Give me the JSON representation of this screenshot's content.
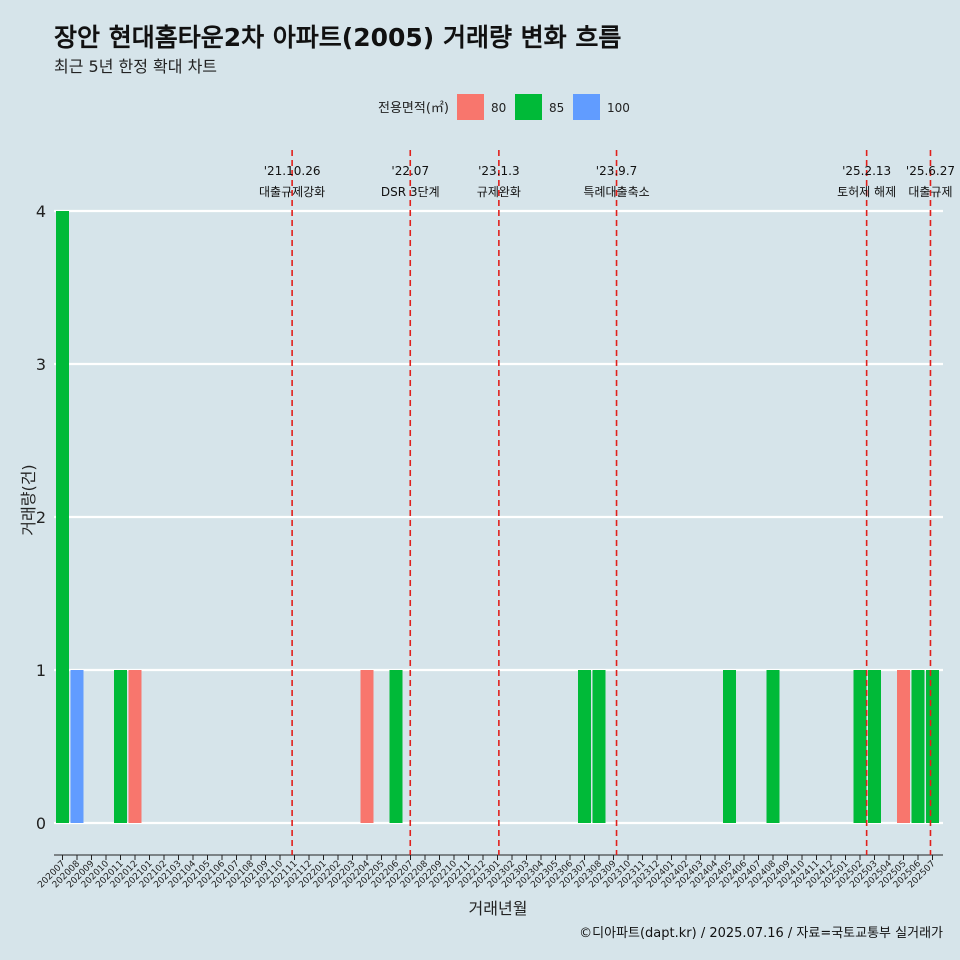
{
  "header": {
    "title": "장안 현대홈타운2차 아파트(2005) 거래량 변화 흐름",
    "subtitle": "최근 5년 한정 확대 차트"
  },
  "caption": "©디아파트(dapt.kr) / 2025.07.16 / 자료=국토교통부 실거래가",
  "chart_data": {
    "type": "bar",
    "xlabel": "거래년월",
    "ylabel": "거래량(건)",
    "ylim": [
      0,
      4
    ],
    "yticks": [
      0,
      1,
      2,
      3,
      4
    ],
    "grid": true,
    "legend": {
      "title": "전용면적(㎡)",
      "placement": "top"
    },
    "categories": [
      "202007",
      "202008",
      "202009",
      "202010",
      "202011",
      "202012",
      "202101",
      "202102",
      "202103",
      "202104",
      "202105",
      "202106",
      "202107",
      "202108",
      "202109",
      "202110",
      "202111",
      "202112",
      "202201",
      "202202",
      "202203",
      "202204",
      "202205",
      "202206",
      "202207",
      "202208",
      "202209",
      "202210",
      "202211",
      "202212",
      "202301",
      "202302",
      "202303",
      "202304",
      "202305",
      "202306",
      "202307",
      "202308",
      "202309",
      "202310",
      "202311",
      "202312",
      "202401",
      "202402",
      "202403",
      "202404",
      "202405",
      "202406",
      "202407",
      "202408",
      "202409",
      "202410",
      "202411",
      "202412",
      "202501",
      "202502",
      "202503",
      "202504",
      "202505",
      "202506",
      "202507"
    ],
    "series": [
      {
        "name": "80",
        "color": "#f8766d",
        "points": [
          {
            "x": "202012",
            "y": 1
          },
          {
            "x": "202204",
            "y": 1
          },
          {
            "x": "202505",
            "y": 1
          }
        ]
      },
      {
        "name": "85",
        "color": "#00ba38",
        "points": [
          {
            "x": "202007",
            "y": 4
          },
          {
            "x": "202011",
            "y": 1
          },
          {
            "x": "202206",
            "y": 1
          },
          {
            "x": "202307",
            "y": 1
          },
          {
            "x": "202308",
            "y": 1
          },
          {
            "x": "202405",
            "y": 1
          },
          {
            "x": "202408",
            "y": 1
          },
          {
            "x": "202502",
            "y": 1
          },
          {
            "x": "202503",
            "y": 1
          },
          {
            "x": "202506",
            "y": 1
          },
          {
            "x": "202507",
            "y": 1
          }
        ]
      },
      {
        "name": "100",
        "color": "#619cff",
        "points": [
          {
            "x": "202008",
            "y": 1
          }
        ]
      }
    ],
    "annotations": [
      {
        "date": "2021-10-26",
        "label1": "'21.10.26",
        "label2": "대출규제강화"
      },
      {
        "date": "2022-07-01",
        "label1": "'22.07",
        "label2": "DSR 3단계"
      },
      {
        "date": "2023-01-03",
        "label1": "'23.1.3",
        "label2": "규제완화"
      },
      {
        "date": "2023-09-07",
        "label1": "'23.9.7",
        "label2": "특례대출축소"
      },
      {
        "date": "2025-02-13",
        "label1": "'25.2.13",
        "label2": "토허제 해제"
      },
      {
        "date": "2025-06-27",
        "label1": "'25.6.27",
        "label2": "대출규제"
      }
    ]
  }
}
